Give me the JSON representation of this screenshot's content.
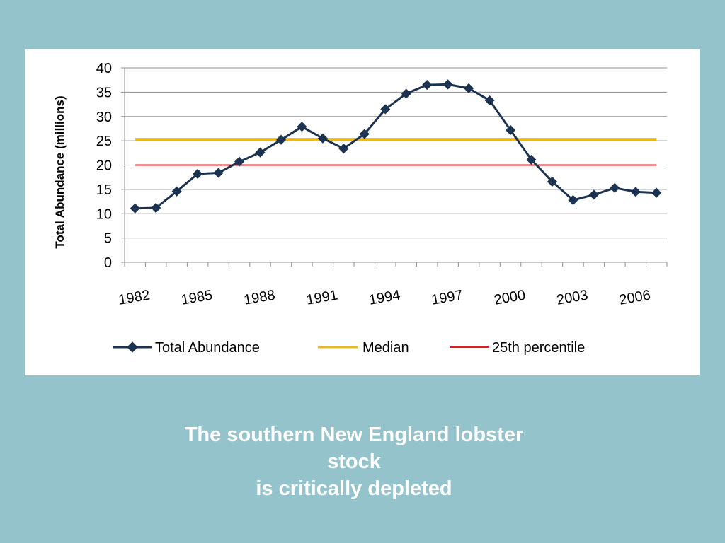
{
  "caption": {
    "line1": "The southern New England lobster",
    "line2": "stock",
    "line3": "is critically depleted"
  },
  "chart_data": {
    "type": "line",
    "ylabel": "Total Abundance (millions)",
    "xlabel": "",
    "ylim": [
      0,
      40
    ],
    "yticks": [
      0,
      5,
      10,
      15,
      20,
      25,
      30,
      35,
      40
    ],
    "xlim": [
      1982,
      2008
    ],
    "xtick_labels": [
      "1982",
      "1985",
      "1988",
      "1991",
      "1994",
      "1997",
      "2000",
      "2003",
      "2006"
    ],
    "grid": true,
    "legend_position": "bottom",
    "series": [
      {
        "name": "Total Abundance",
        "color": "#1b3350",
        "marker": "diamond",
        "x": [
          1982,
          1983,
          1984,
          1985,
          1986,
          1987,
          1988,
          1989,
          1990,
          1991,
          1992,
          1993,
          1994,
          1995,
          1996,
          1997,
          1998,
          1999,
          2000,
          2001,
          2002,
          2003,
          2004,
          2005,
          2006,
          2007
        ],
        "values": [
          11.1,
          11.2,
          14.6,
          18.2,
          18.4,
          20.7,
          22.6,
          25.2,
          27.9,
          25.5,
          23.4,
          26.4,
          31.5,
          34.7,
          36.5,
          36.6,
          35.8,
          33.3,
          27.2,
          21.1,
          16.6,
          12.8,
          13.9,
          15.3,
          14.5,
          14.3
        ]
      },
      {
        "name": "Median",
        "color": "#e8b820",
        "values": [
          25.3
        ]
      },
      {
        "name": "25th percentile",
        "color": "#dd1e1e",
        "values": [
          20.0
        ]
      }
    ]
  }
}
